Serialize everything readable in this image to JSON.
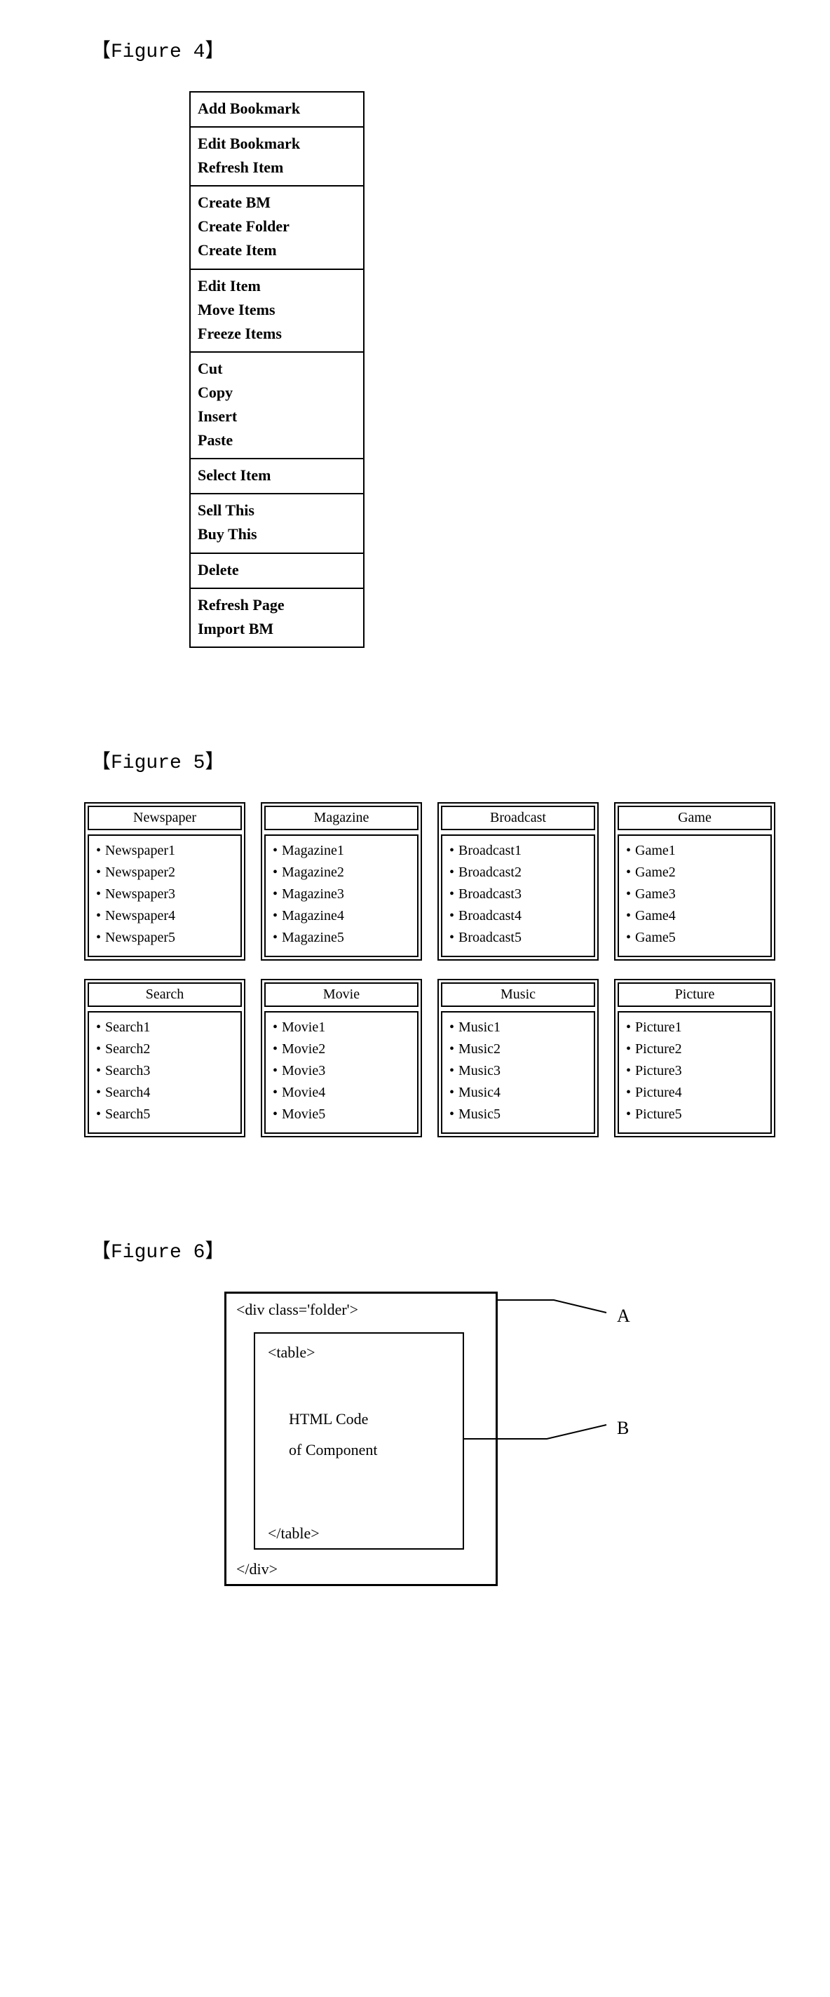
{
  "figure4": {
    "label": "【Figure 4】",
    "groups": [
      [
        "Add Bookmark"
      ],
      [
        "Edit Bookmark",
        "Refresh Item"
      ],
      [
        "Create BM",
        "Create Folder",
        "Create Item"
      ],
      [
        "Edit Item",
        "Move Items",
        "Freeze Items"
      ],
      [
        "Cut",
        "Copy",
        "Insert",
        "Paste"
      ],
      [
        "Select Item"
      ],
      [
        "Sell This",
        "Buy This"
      ],
      [
        "Delete"
      ],
      [
        "Refresh Page",
        "Import BM"
      ]
    ]
  },
  "figure5": {
    "label": "【Figure 5】",
    "panels": [
      {
        "title": "Newspaper",
        "items": [
          "Newspaper1",
          "Newspaper2",
          "Newspaper3",
          "Newspaper4",
          "Newspaper5"
        ]
      },
      {
        "title": "Magazine",
        "items": [
          "Magazine1",
          "Magazine2",
          "Magazine3",
          "Magazine4",
          "Magazine5"
        ]
      },
      {
        "title": "Broadcast",
        "items": [
          "Broadcast1",
          "Broadcast2",
          "Broadcast3",
          "Broadcast4",
          "Broadcast5"
        ]
      },
      {
        "title": "Game",
        "items": [
          "Game1",
          "Game2",
          "Game3",
          "Game4",
          "Game5"
        ]
      },
      {
        "title": "Search",
        "items": [
          "Search1",
          "Search2",
          "Search3",
          "Search4",
          "Search5"
        ]
      },
      {
        "title": "Movie",
        "items": [
          "Movie1",
          "Movie2",
          "Movie3",
          "Movie4",
          "Movie5"
        ]
      },
      {
        "title": "Music",
        "items": [
          "Music1",
          "Music2",
          "Music3",
          "Music4",
          "Music5"
        ]
      },
      {
        "title": "Picture",
        "items": [
          "Picture1",
          "Picture2",
          "Picture3",
          "Picture4",
          "Picture5"
        ]
      }
    ]
  },
  "figure6": {
    "label": "【Figure 6】",
    "box_a_open": "<div class='folder'>",
    "box_a_close": "</div>",
    "box_b_open": "<table>",
    "box_b_text1": "HTML Code",
    "box_b_text2": "of Component",
    "box_b_close": "</table>",
    "label_a": "A",
    "label_b": "B"
  }
}
